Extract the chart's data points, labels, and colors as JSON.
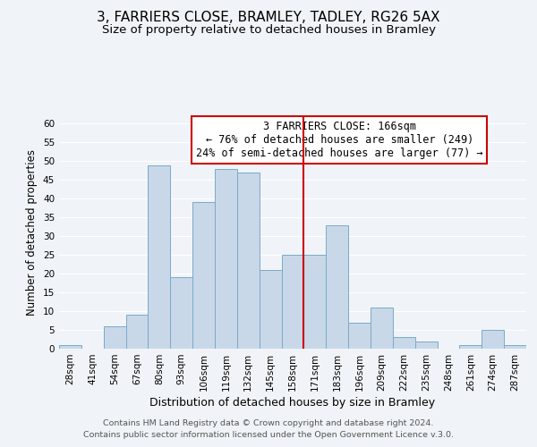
{
  "title": "3, FARRIERS CLOSE, BRAMLEY, TADLEY, RG26 5AX",
  "subtitle": "Size of property relative to detached houses in Bramley",
  "xlabel": "Distribution of detached houses by size in Bramley",
  "ylabel": "Number of detached properties",
  "bin_labels": [
    "28sqm",
    "41sqm",
    "54sqm",
    "67sqm",
    "80sqm",
    "93sqm",
    "106sqm",
    "119sqm",
    "132sqm",
    "145sqm",
    "158sqm",
    "171sqm",
    "183sqm",
    "196sqm",
    "209sqm",
    "222sqm",
    "235sqm",
    "248sqm",
    "261sqm",
    "274sqm",
    "287sqm"
  ],
  "bar_values": [
    1,
    0,
    6,
    9,
    49,
    19,
    39,
    48,
    47,
    21,
    25,
    25,
    33,
    7,
    11,
    3,
    2,
    0,
    1,
    5,
    1
  ],
  "bar_color": "#c8d8e8",
  "bar_edgecolor": "#7aaac8",
  "vline_x": 10.5,
  "vline_color": "#cc0000",
  "annotation_title": "3 FARRIERS CLOSE: 166sqm",
  "annotation_line1": "← 76% of detached houses are smaller (249)",
  "annotation_line2": "24% of semi-detached houses are larger (77) →",
  "annotation_box_edgecolor": "#cc0000",
  "footnote1": "Contains HM Land Registry data © Crown copyright and database right 2024.",
  "footnote2": "Contains public sector information licensed under the Open Government Licence v.3.0.",
  "ylim": [
    0,
    62
  ],
  "yticks": [
    0,
    5,
    10,
    15,
    20,
    25,
    30,
    35,
    40,
    45,
    50,
    55,
    60
  ],
  "background_color": "#f0f4f8",
  "grid_color": "#ffffff",
  "title_fontsize": 11,
  "subtitle_fontsize": 9.5,
  "xlabel_fontsize": 9,
  "ylabel_fontsize": 8.5,
  "tick_fontsize": 7.5,
  "annotation_fontsize": 8.5,
  "footnote_fontsize": 6.8
}
